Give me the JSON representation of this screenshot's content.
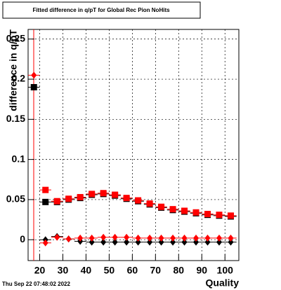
{
  "chart_data": {
    "type": "scatter",
    "title": "Fitted difference in q/pT for Global Rec Pion NoHits",
    "x_label": "Quality",
    "y_label": "difference in q/pT",
    "timestamp": "Thu Sep 22 07:48:02 2022",
    "xlim": [
      15,
      106
    ],
    "xticks": [
      20,
      30,
      40,
      50,
      60,
      70,
      80,
      90,
      100
    ],
    "ylim": [
      -0.026,
      0.262
    ],
    "yticks": [
      0,
      0.05,
      0.1,
      0.15,
      0.2,
      0.25
    ],
    "grid": true,
    "series": [
      {
        "marker": "square",
        "color": "#000000",
        "x": [
          17.5,
          22.5,
          27.5,
          32.5,
          37.5,
          42.5,
          47.5,
          52.5,
          57.5,
          62.5,
          67.5,
          72.5,
          77.5,
          82.5,
          87.5,
          92.5,
          97.5,
          102.5
        ],
        "values": [
          0.19,
          0.047,
          0.047,
          0.05,
          0.052,
          0.056,
          0.057,
          0.055,
          0.051,
          0.048,
          0.044,
          0.04,
          0.037,
          0.035,
          0.033,
          0.031,
          0.03,
          0.029
        ]
      },
      {
        "marker": "square",
        "color": "#ff0000",
        "x": [
          22.5,
          27.5,
          32.5,
          37.5,
          42.5,
          47.5,
          52.5,
          57.5,
          62.5,
          67.5,
          72.5,
          77.5,
          82.5,
          87.5,
          92.5,
          97.5,
          102.5
        ],
        "values": [
          0.062,
          0.048,
          0.051,
          0.053,
          0.057,
          0.058,
          0.056,
          0.052,
          0.049,
          0.045,
          0.041,
          0.038,
          0.036,
          0.034,
          0.032,
          0.031,
          0.03
        ]
      },
      {
        "marker": "diamond",
        "color": "#000000",
        "x": [
          22.5,
          27.5,
          32.5,
          37.5,
          42.5,
          47.5,
          52.5,
          57.5,
          62.5,
          67.5,
          72.5,
          77.5,
          82.5,
          87.5,
          92.5,
          97.5,
          102.5
        ],
        "values": [
          0.0,
          0.004,
          0.001,
          -0.002,
          -0.003,
          -0.003,
          -0.003,
          -0.003,
          -0.003,
          -0.003,
          -0.003,
          -0.003,
          -0.003,
          -0.003,
          -0.003,
          -0.003,
          -0.003
        ]
      },
      {
        "marker": "diamond",
        "color": "#ff0000",
        "x": [
          17.5,
          22.5,
          27.5,
          32.5,
          37.5,
          42.5,
          47.5,
          52.5,
          57.5,
          62.5,
          67.5,
          72.5,
          77.5,
          82.5,
          87.5,
          92.5,
          97.5,
          102.5
        ],
        "values": [
          0.205,
          -0.004,
          0.003,
          0.001,
          0.002,
          0.002,
          0.003,
          0.003,
          0.003,
          0.002,
          0.002,
          0.002,
          0.002,
          0.002,
          0.002,
          0.002,
          0.002,
          0.002
        ]
      }
    ]
  }
}
